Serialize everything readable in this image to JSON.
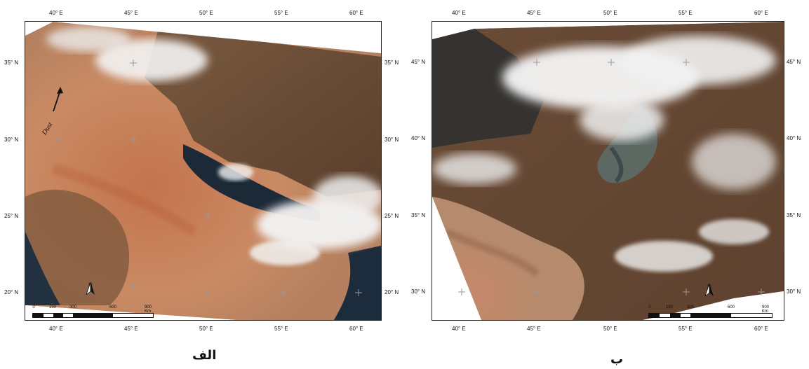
{
  "figure": {
    "left_caption": "الف",
    "right_caption": "ب"
  },
  "panel_left": {
    "lon_labels": [
      "40° E",
      "45° E",
      "50° E",
      "55° E",
      "60° E"
    ],
    "lat_labels": [
      "35° N",
      "30° N",
      "25° N",
      "20° N"
    ],
    "annotation": "Dust",
    "north_label": "N",
    "scale": {
      "ticks": [
        "0",
        "150",
        "300",
        "600",
        "900 Km"
      ]
    }
  },
  "panel_right": {
    "lon_labels": [
      "40° E",
      "45° E",
      "50° E",
      "55° E",
      "60° E"
    ],
    "lat_labels": [
      "45° N",
      "40° N",
      "35° N",
      "30° N"
    ],
    "north_label": "N",
    "scale": {
      "ticks": [
        "0",
        "150",
        "300",
        "600",
        "900 Km"
      ]
    }
  },
  "colors": {
    "dust": "#c98a63",
    "land": "#6b4a33",
    "water": "#1c2a38",
    "cloud": "#f2f2f2",
    "frame": "#222222"
  }
}
